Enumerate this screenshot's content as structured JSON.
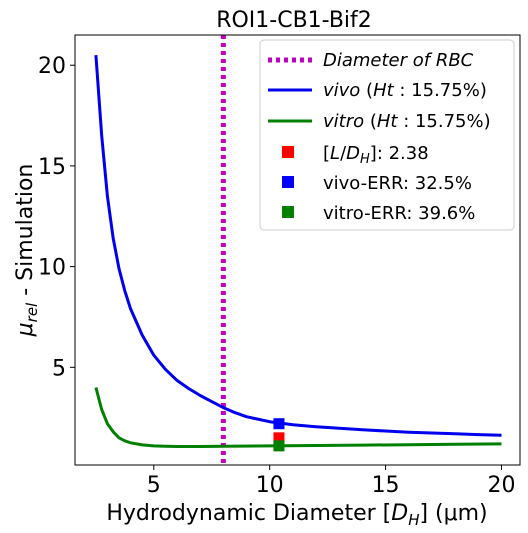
{
  "chart_data": {
    "type": "line",
    "title": "ROI1-CB1-Bif2",
    "xlabel": "Hydrodynamic Diameter [D_H] (μm)",
    "xlabel_parts": {
      "pre": "Hydrodynamic Diameter [",
      "var": "D",
      "sub": "H",
      "post": "] (μm)"
    },
    "ylabel": "μ_rel - Simulation",
    "ylabel_parts": {
      "var": "μ",
      "sub": "rel",
      "post": " - Simulation"
    },
    "xlim": [
      1.6,
      20.8
    ],
    "ylim": [
      0.15,
      21.5
    ],
    "xticks": [
      5,
      10,
      15,
      20
    ],
    "yticks": [
      5,
      10,
      15,
      20
    ],
    "grid": false,
    "legend_position": "top-right",
    "series": [
      {
        "name": "vivo (Ht: 15.75%)",
        "color": "#0000ee",
        "x": [
          2.5,
          2.75,
          3,
          3.25,
          3.5,
          3.75,
          4,
          4.5,
          5,
          5.5,
          6,
          6.5,
          7,
          7.5,
          8,
          8.5,
          9,
          10,
          11,
          12,
          13,
          14,
          15,
          16,
          17,
          18,
          19,
          20
        ],
        "y": [
          20.5,
          16.5,
          13.5,
          11.4,
          9.9,
          8.8,
          7.9,
          6.6,
          5.6,
          4.9,
          4.35,
          3.95,
          3.6,
          3.3,
          3.0,
          2.75,
          2.55,
          2.3,
          2.15,
          2.05,
          1.97,
          1.9,
          1.84,
          1.78,
          1.74,
          1.7,
          1.66,
          1.63
        ]
      },
      {
        "name": "vitro (Ht: 15.75%)",
        "color": "#008000",
        "x": [
          2.5,
          2.75,
          3,
          3.25,
          3.5,
          3.75,
          4,
          4.5,
          5,
          5.5,
          6,
          7,
          8,
          10,
          12,
          14,
          16,
          18,
          20
        ],
        "y": [
          4.0,
          2.9,
          2.2,
          1.8,
          1.5,
          1.35,
          1.25,
          1.15,
          1.1,
          1.08,
          1.07,
          1.07,
          1.08,
          1.1,
          1.12,
          1.14,
          1.16,
          1.18,
          1.2
        ]
      }
    ],
    "vertical_line": {
      "name": "Diameter of RBC",
      "x": 8,
      "color": "#bf00bf",
      "style": "dotted"
    },
    "markers": [
      {
        "name": "[L/D_H]: 2.38",
        "name_parts": {
          "pre": "[",
          "var": "L",
          "mid": "/",
          "var2": "D",
          "sub": "H",
          "post": "]: 2.38"
        },
        "x": 10.4,
        "y": 1.5,
        "color": "#ff0000"
      },
      {
        "name": "vivo-ERR: 32.5%",
        "x": 10.4,
        "y": 2.2,
        "color": "#0000ff"
      },
      {
        "name": "vitro-ERR: 39.6%",
        "x": 10.4,
        "y": 1.1,
        "color": "#008000"
      }
    ]
  }
}
